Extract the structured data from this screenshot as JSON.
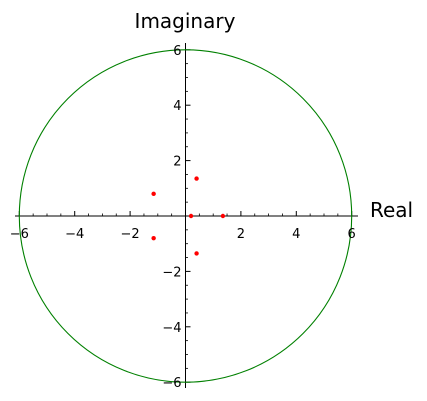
{
  "chart_data": {
    "type": "scatter",
    "xlabel": "Real",
    "ylabel": "Imaginary",
    "xlim": [
      -6,
      6
    ],
    "ylim": [
      -6,
      6
    ],
    "x_ticks": [
      -6,
      -4,
      -2,
      0,
      2,
      4,
      6
    ],
    "y_ticks": [
      -6,
      -4,
      -2,
      2,
      4,
      6
    ],
    "x_tick_labels": [
      "−6",
      "−4",
      "−2",
      "",
      "2",
      "4",
      "6"
    ],
    "y_tick_labels": [
      "−6",
      "−4",
      "−2",
      "2",
      "4",
      "6"
    ],
    "minor_step": 0.5,
    "grid": false,
    "circle": {
      "center": [
        0,
        0
      ],
      "radius": 6,
      "color": "#008000"
    },
    "points": [
      {
        "x": -1.15,
        "y": 0.8
      },
      {
        "x": -1.15,
        "y": -0.8
      },
      {
        "x": 0.2,
        "y": 0.0
      },
      {
        "x": 0.4,
        "y": 1.35
      },
      {
        "x": 0.4,
        "y": -1.35
      },
      {
        "x": 1.35,
        "y": 0.0
      }
    ],
    "point_color": "#ff0000",
    "axis_color": "#000000"
  }
}
